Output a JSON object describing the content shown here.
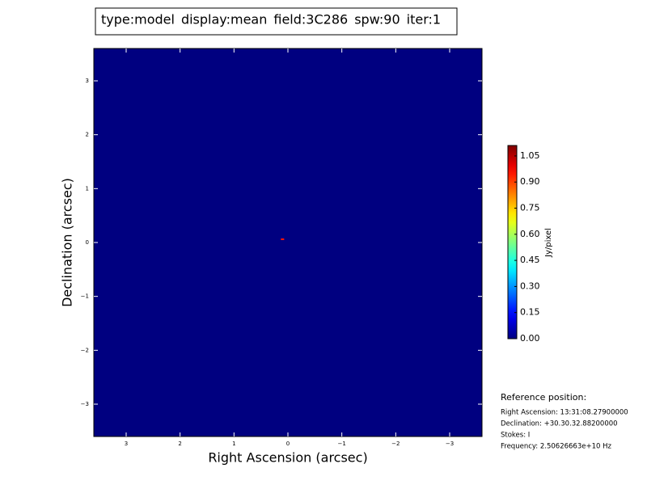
{
  "chart_data": {
    "type": "image",
    "title_parts": [
      {
        "text": "type:model",
        "color": "#000000"
      },
      {
        "text": "display:mean",
        "color": "#ff0000"
      },
      {
        "text": "field:3C286",
        "color": "#000000"
      },
      {
        "text": "spw:90",
        "color": "#000000"
      },
      {
        "text": "iter:1",
        "color": "#000000"
      }
    ],
    "x_label": "Right Ascension (arcsec)",
    "y_label": "Declination (arcsec)",
    "xlim": [
      3.6,
      -3.6
    ],
    "ylim": [
      -3.6,
      3.6
    ],
    "xticks": [
      3,
      2,
      1,
      0,
      {
        "value": -1,
        "label": "−1"
      },
      {
        "value": -2,
        "label": "−2"
      },
      {
        "value": -3,
        "label": "−3"
      }
    ],
    "yticks": [
      3,
      2,
      1,
      0,
      {
        "value": -1,
        "label": "−1"
      },
      {
        "value": -2,
        "label": "−2"
      },
      {
        "value": -3,
        "label": "−3"
      }
    ],
    "colormap": "jet",
    "background": 0,
    "sources": [
      {
        "x": 0.1,
        "y": 0.06,
        "value": 0.95
      }
    ],
    "colorbar_label": "Jy/pixel",
    "clim": [
      0,
      1.11
    ],
    "cticks": [
      {
        "value": 0,
        "label": "0.00"
      },
      {
        "value": 0.15,
        "label": "0.15"
      },
      {
        "value": 0.3,
        "label": "0.30"
      },
      {
        "value": 0.45,
        "label": "0.45"
      },
      {
        "value": 0.6,
        "label": "0.60"
      },
      {
        "value": 0.75,
        "label": "0.75"
      },
      {
        "value": 0.9,
        "label": "0.90"
      },
      {
        "value": 1.05,
        "label": "1.05"
      }
    ],
    "reference": {
      "heading": "Reference position:",
      "lines": [
        "Right Ascension: 13:31:08.27900000",
        "Declination: +30.30.32.88200000",
        "Stokes: I",
        "Frequency: 2.50626663e+10 Hz"
      ]
    }
  }
}
